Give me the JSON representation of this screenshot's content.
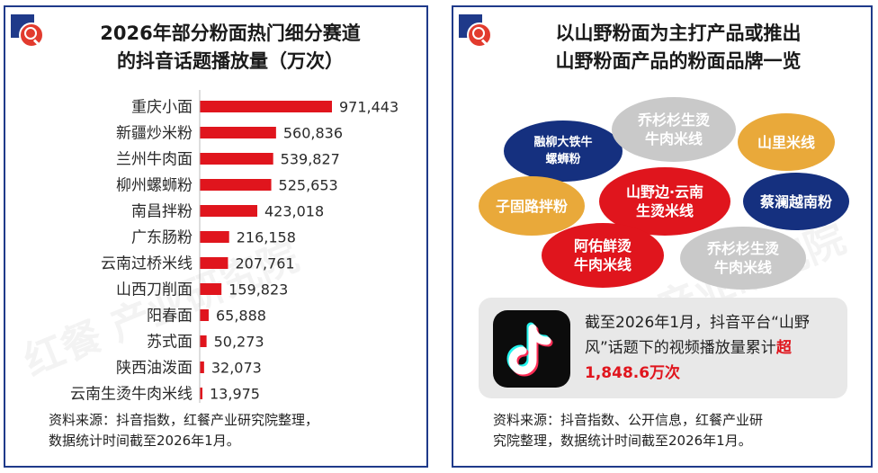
{
  "left": {
    "title": "2026年部分粉面热门细分赛道\n的抖音话题播放量（万次）",
    "source": "资料来源：抖音指数，红餐产业研究院整理，\n数据统计时间截至2026年1月。",
    "watermark": "红餐 产业研究院"
  },
  "right": {
    "title": "以山野粉面为主打产品或推出\n山野粉面产品的粉面品牌一览",
    "brands": [
      {
        "name": "融柳大铁牛\n螺蛳粉",
        "color": "navy"
      },
      {
        "name": "乔杉杉生烫\n牛肉米线",
        "color": "gray"
      },
      {
        "name": "山里米线",
        "color": "gold"
      },
      {
        "name": "子固路拌粉",
        "color": "gold"
      },
      {
        "name": "山野边·云南\n生烫米线",
        "color": "red"
      },
      {
        "name": "蔡澜越南粉",
        "color": "navy"
      },
      {
        "name": "阿佑鲜烫\n牛肉米线",
        "color": "red"
      },
      {
        "name": "乔杉杉生烫\n牛肉米线",
        "color": "gray"
      }
    ],
    "tiktok": {
      "text_before": "截至2026年1月，抖音平台“山野风”话题下的视频播放量累计",
      "highlight": "超1,848.6万次"
    },
    "source": "资料来源：抖音指数、公开信息，红餐产业研\n究院整理，数据统计时间截至2026年1月。",
    "watermark": "红餐 产业研究院"
  },
  "colors": {
    "bar": "#e0151d",
    "border": "#1f3a8a",
    "navy": "#15307f",
    "gold": "#e9a93a",
    "gray": "#c9c9c9",
    "red": "#e0151d"
  },
  "chart_data": {
    "type": "bar",
    "orientation": "horizontal",
    "title": "2026年部分粉面热门细分赛道的抖音话题播放量（万次）",
    "categories": [
      "重庆小面",
      "新疆炒米粉",
      "兰州牛肉面",
      "柳州螺蛳粉",
      "南昌拌粉",
      "广东肠粉",
      "云南过桥米线",
      "山西刀削面",
      "阳春面",
      "苏式面",
      "陕西油泼面",
      "云南生烫牛肉米线"
    ],
    "values": [
      971443,
      560836,
      539827,
      525653,
      423018,
      216158,
      207761,
      159823,
      65888,
      50273,
      32073,
      13975
    ],
    "value_labels": [
      "971,443",
      "560,836",
      "539,827",
      "525,653",
      "423,018",
      "216,158",
      "207,761",
      "159,823",
      "65,888",
      "50,273",
      "32,073",
      "13,975"
    ],
    "xlim": [
      0,
      971443
    ],
    "grid": false,
    "legend": "none"
  }
}
